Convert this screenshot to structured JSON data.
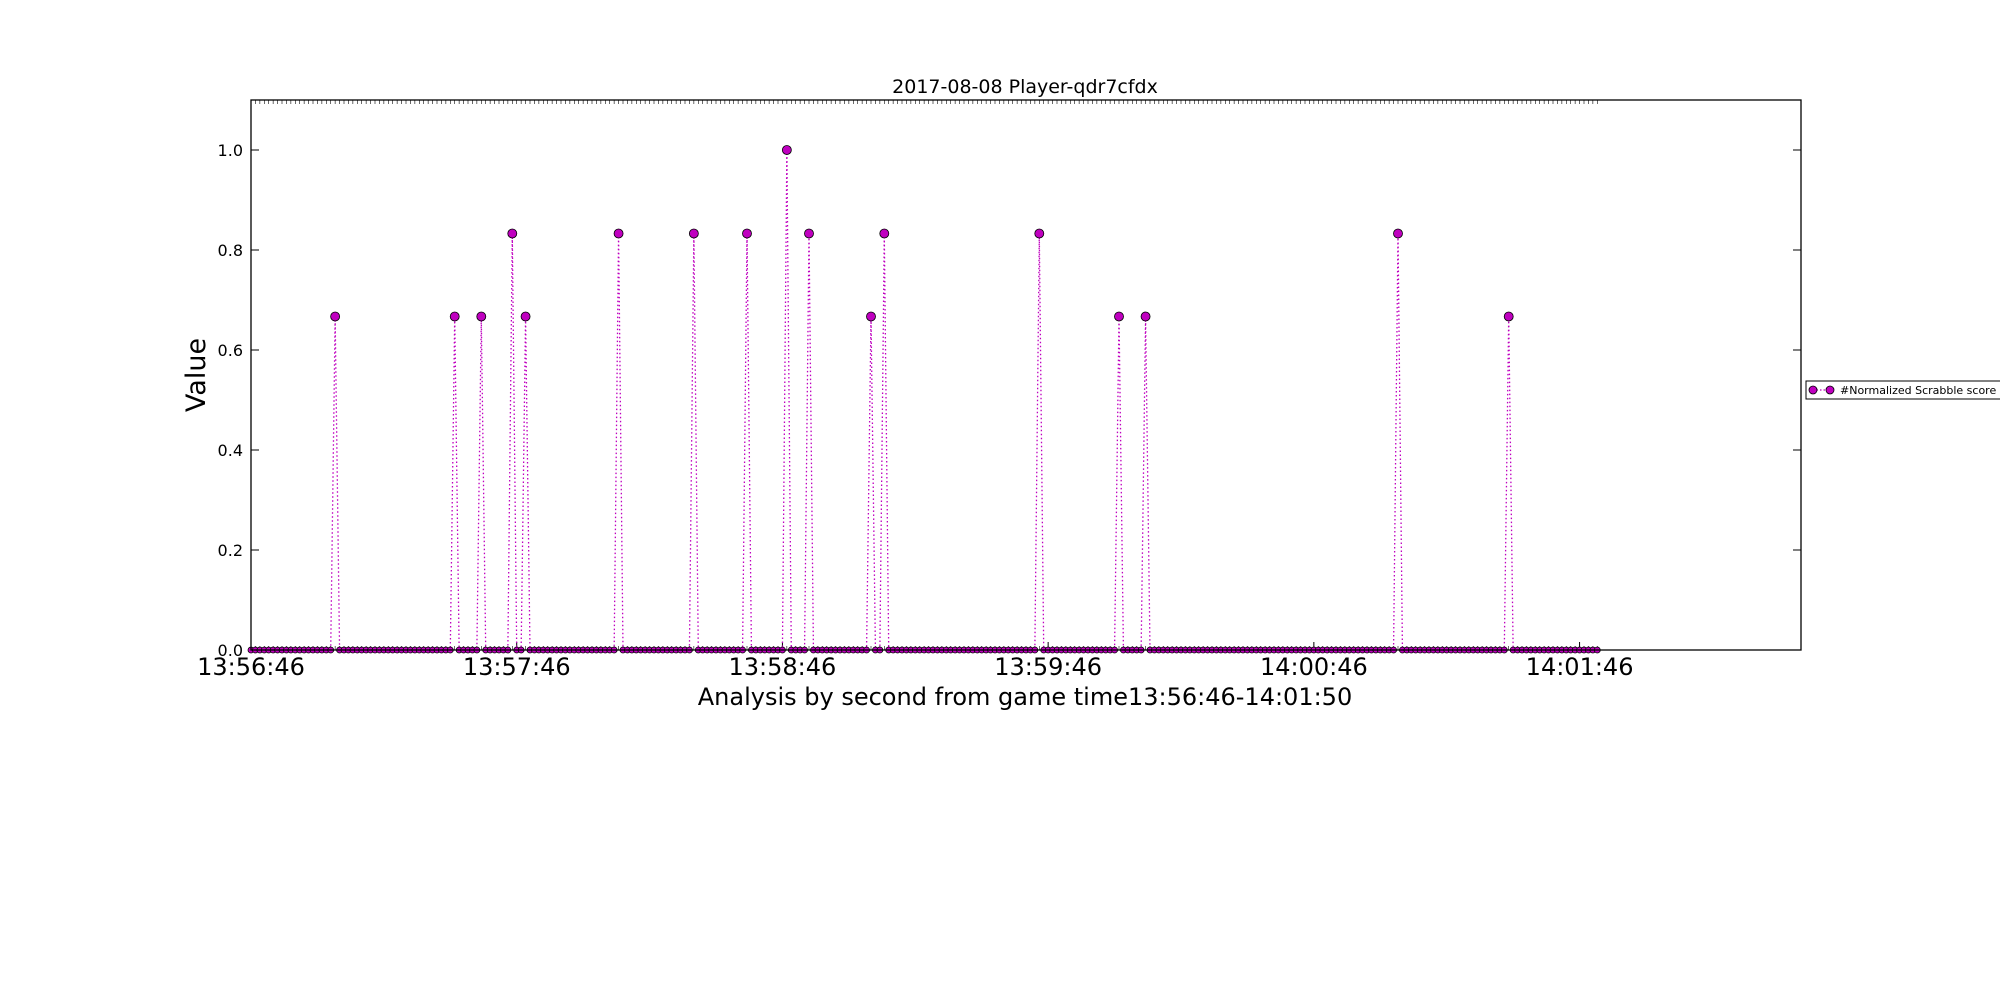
{
  "chart_data": {
    "type": "scatter",
    "title": "2017-08-08 Player-qdr7cfdx",
    "xlabel": "Analysis by second from game time13:56:46-14:01:50",
    "ylabel": "Value",
    "xlim": [
      0,
      350
    ],
    "ylim": [
      0,
      1.1
    ],
    "x_ticks": [
      {
        "value": 0,
        "label": "13:56:46"
      },
      {
        "value": 60,
        "label": "13:57:46"
      },
      {
        "value": 120,
        "label": "13:58:46"
      },
      {
        "value": 180,
        "label": "13:59:46"
      },
      {
        "value": 240,
        "label": "14:00:46"
      },
      {
        "value": 300,
        "label": "14:01:46"
      }
    ],
    "y_ticks": [
      {
        "value": 0.0,
        "label": "0.0"
      },
      {
        "value": 0.2,
        "label": "0.2"
      },
      {
        "value": 0.4,
        "label": "0.4"
      },
      {
        "value": 0.6,
        "label": "0.6"
      },
      {
        "value": 0.8,
        "label": "0.8"
      },
      {
        "value": 1.0,
        "label": "1.0"
      }
    ],
    "x_range_seconds": [
      0,
      304
    ],
    "series": [
      {
        "name": "#Normalized Scrabble score",
        "color": "#bf00bf",
        "line_style": "dotted",
        "marker": "circle",
        "baseline": 0,
        "nonzero_points": [
          {
            "x": 19,
            "y": 0.667
          },
          {
            "x": 46,
            "y": 0.667
          },
          {
            "x": 52,
            "y": 0.667
          },
          {
            "x": 59,
            "y": 0.833
          },
          {
            "x": 62,
            "y": 0.667
          },
          {
            "x": 83,
            "y": 0.833
          },
          {
            "x": 100,
            "y": 0.833
          },
          {
            "x": 112,
            "y": 0.833
          },
          {
            "x": 121,
            "y": 1.0
          },
          {
            "x": 126,
            "y": 0.833
          },
          {
            "x": 140,
            "y": 0.667
          },
          {
            "x": 143,
            "y": 0.833
          },
          {
            "x": 178,
            "y": 0.833
          },
          {
            "x": 196,
            "y": 0.667
          },
          {
            "x": 202,
            "y": 0.667
          },
          {
            "x": 259,
            "y": 0.833
          },
          {
            "x": 284,
            "y": 0.667
          }
        ]
      }
    ],
    "legend_position": "right"
  }
}
